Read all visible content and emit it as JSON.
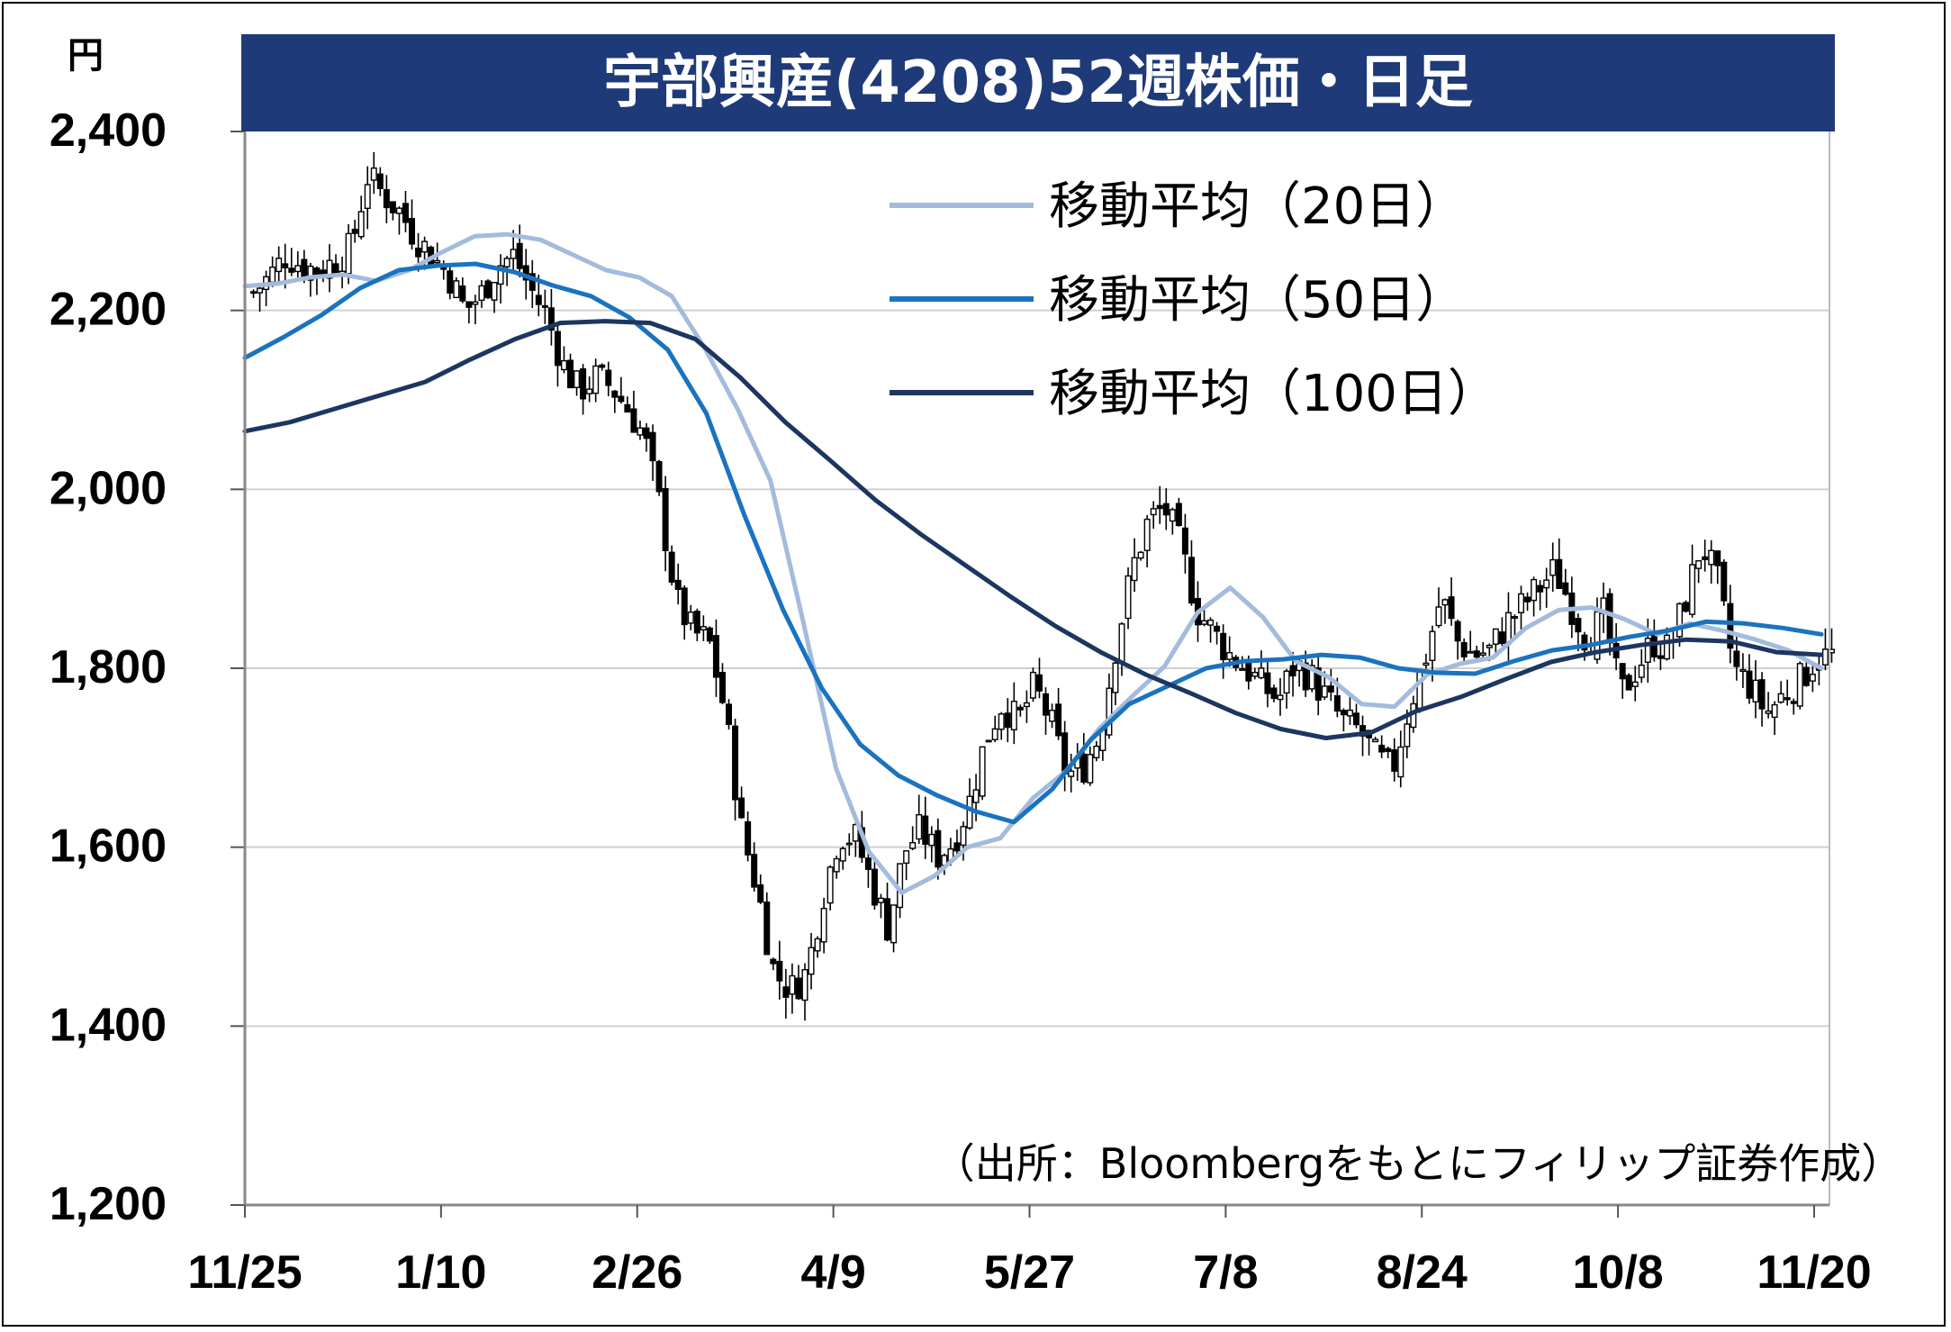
{
  "chart_data": {
    "type": "line",
    "title": "宇部興産(4208)52週株価・日足",
    "ylabel": "円",
    "ylim": [
      1200,
      2400
    ],
    "yticks": [
      "1,200",
      "1,400",
      "1,600",
      "1,800",
      "2,000",
      "2,200",
      "2,400"
    ],
    "ytick_values": [
      1200,
      1400,
      1600,
      1800,
      2000,
      2200,
      2400
    ],
    "xticks": [
      "11/25",
      "1/10",
      "2/26",
      "4/9",
      "5/27",
      "7/8",
      "8/24",
      "10/8",
      "11/20"
    ],
    "grid": true,
    "legend_position": "top-right",
    "source": "（出所：Bloombergをもとにフィリップ証券作成）",
    "colors": {
      "title_bg": "#1f3a78",
      "candle": "#000000",
      "grid": "#d0d0d0",
      "ma20": "#a3bbdc",
      "ma50": "#1a73bf",
      "ma100": "#1c3660"
    },
    "series": [
      {
        "name": "移動平均（20日）",
        "color": "#a3bbdc",
        "values": [
          2227,
          2230,
          2237,
          2240,
          2233,
          2245,
          2265,
          2283,
          2285,
          2279,
          2262,
          2245,
          2237,
          2216,
          2158,
          2090,
          2010,
          1852,
          1688,
          1595,
          1549,
          1568,
          1600,
          1610,
          1655,
          1685,
          1732,
          1768,
          1802,
          1862,
          1890,
          1857,
          1808,
          1790,
          1760,
          1757,
          1793,
          1805,
          1812,
          1845,
          1865,
          1868,
          1855,
          1838,
          1850,
          1842,
          1832,
          1820,
          1800
        ]
      },
      {
        "name": "移動平均（50日）",
        "color": "#1a73bf",
        "values": [
          2147,
          2170,
          2195,
          2225,
          2245,
          2250,
          2252,
          2243,
          2228,
          2216,
          2192,
          2156,
          2085,
          1970,
          1865,
          1778,
          1715,
          1680,
          1658,
          1640,
          1628,
          1665,
          1720,
          1760,
          1780,
          1800,
          1808,
          1810,
          1815,
          1812,
          1800,
          1795,
          1794,
          1808,
          1820,
          1826,
          1835,
          1842,
          1852,
          1850,
          1845,
          1838
        ]
      },
      {
        "name": "移動平均（100日）",
        "color": "#1c3660",
        "values": [
          2065,
          2075,
          2090,
          2105,
          2120,
          2145,
          2168,
          2186,
          2188,
          2186,
          2168,
          2125,
          2075,
          2032,
          1988,
          1950,
          1915,
          1880,
          1847,
          1818,
          1793,
          1772,
          1750,
          1732,
          1722,
          1728,
          1752,
          1768,
          1788,
          1807,
          1818,
          1826,
          1832,
          1830,
          1818,
          1815
        ]
      }
    ],
    "price_path": [
      2220,
      2238,
      2262,
      2250,
      2245,
      2255,
      2270,
      2350,
      2330,
      2310,
      2282,
      2260,
      2240,
      2200,
      2218,
      2250,
      2262,
      2225,
      2195,
      2140,
      2110,
      2125,
      2115,
      2090,
      2060,
      1980,
      1875,
      1840,
      1830,
      1750,
      1620,
      1550,
      1460,
      1440,
      1460,
      1545,
      1615,
      1610,
      1560,
      1510,
      1595,
      1620,
      1590,
      1605,
      1650,
      1720,
      1760,
      1740,
      1780,
      1740,
      1680,
      1690,
      1725,
      1825,
      1910,
      1965,
      1980,
      1935,
      1865,
      1840,
      1815,
      1800,
      1780,
      1765,
      1805,
      1790,
      1765,
      1740,
      1730,
      1700,
      1685,
      1755,
      1810,
      1880,
      1830,
      1815,
      1820,
      1850,
      1870,
      1890,
      1910,
      1870,
      1830,
      1860,
      1770,
      1800,
      1830,
      1820,
      1875,
      1940,
      1895,
      1800,
      1780,
      1750,
      1770,
      1785,
      1810,
      1815
    ]
  }
}
